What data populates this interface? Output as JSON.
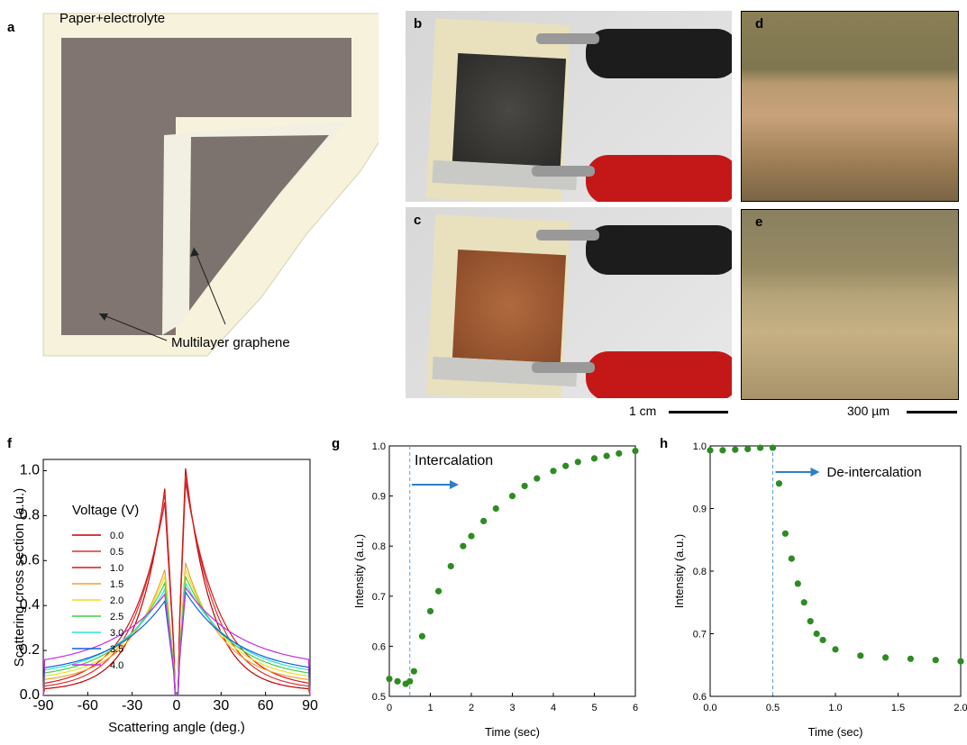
{
  "panels": {
    "a": {
      "letter": "a",
      "paper_label": "Paper+electrolyte",
      "graphene_label": "Multilayer graphene"
    },
    "b": {
      "letter": "b"
    },
    "c": {
      "letter": "c"
    },
    "d": {
      "letter": "d"
    },
    "e": {
      "letter": "e"
    },
    "scalebar_photo": "1 cm",
    "scalebar_micro": "300 µm",
    "f": {
      "letter": "f"
    },
    "g": {
      "letter": "g",
      "annotation": "Intercalation"
    },
    "h": {
      "letter": "h",
      "annotation": "De-intercalation"
    }
  },
  "chart_data": [
    {
      "id": "f",
      "type": "line",
      "xlabel": "Scattering angle (deg.)",
      "ylabel": "Scattering cross section (a.u.)",
      "xlim": [
        -90,
        90
      ],
      "ylim": [
        0,
        1.05
      ],
      "xticks": [
        -90,
        -60,
        -30,
        0,
        30,
        60,
        90
      ],
      "yticks": [
        0.0,
        0.2,
        0.4,
        0.6,
        0.8,
        1.0
      ],
      "legend_title": "Voltage (V)",
      "legend_placement": "left",
      "series": [
        {
          "name": "0.0",
          "color": "#c00000",
          "peak_left": 0.92,
          "peak_right": 1.01,
          "edge": 0.02
        },
        {
          "name": "0.5",
          "color": "#e03030",
          "peak_left": 0.9,
          "peak_right": 0.98,
          "edge": 0.025
        },
        {
          "name": "1.0",
          "color": "#d21a1a",
          "peak_left": 0.86,
          "peak_right": 0.95,
          "edge": 0.03
        },
        {
          "name": "1.5",
          "color": "#f0a030",
          "peak_left": 0.56,
          "peak_right": 0.59,
          "edge": 0.05
        },
        {
          "name": "2.0",
          "color": "#e8e020",
          "peak_left": 0.53,
          "peak_right": 0.56,
          "edge": 0.06
        },
        {
          "name": "2.5",
          "color": "#40d040",
          "peak_left": 0.5,
          "peak_right": 0.53,
          "edge": 0.07
        },
        {
          "name": "3.0",
          "color": "#30e0d0",
          "peak_left": 0.47,
          "peak_right": 0.5,
          "edge": 0.08
        },
        {
          "name": "3.5",
          "color": "#1060e0",
          "peak_left": 0.42,
          "peak_right": 0.46,
          "edge": 0.09
        },
        {
          "name": "4.0",
          "color": "#c030e0",
          "peak_left": 0.45,
          "peak_right": 0.48,
          "edge": 0.12
        }
      ]
    },
    {
      "id": "g",
      "type": "scatter",
      "xlabel": "Time (sec)",
      "ylabel": "Intensity (a.u.)",
      "xlim": [
        0,
        6
      ],
      "ylim": [
        0.5,
        1.0
      ],
      "xticks": [
        0,
        1,
        2,
        3,
        4,
        5,
        6
      ],
      "yticks": [
        0.5,
        0.6,
        0.7,
        0.8,
        0.9,
        1.0
      ],
      "marker_color": "#2e8b22",
      "event_x": 0.5,
      "x": [
        0.0,
        0.2,
        0.4,
        0.5,
        0.6,
        0.8,
        1.0,
        1.2,
        1.5,
        1.8,
        2.0,
        2.3,
        2.6,
        3.0,
        3.3,
        3.6,
        4.0,
        4.3,
        4.6,
        5.0,
        5.3,
        5.6,
        6.0
      ],
      "y": [
        0.535,
        0.53,
        0.525,
        0.53,
        0.55,
        0.62,
        0.67,
        0.71,
        0.76,
        0.8,
        0.82,
        0.85,
        0.875,
        0.9,
        0.92,
        0.935,
        0.95,
        0.96,
        0.968,
        0.975,
        0.98,
        0.985,
        0.99
      ]
    },
    {
      "id": "h",
      "type": "scatter",
      "xlabel": "Time (sec)",
      "ylabel": "Intensity (a.u.)",
      "xlim": [
        0,
        2.0
      ],
      "ylim": [
        0.6,
        1.0
      ],
      "xticks": [
        0.0,
        0.5,
        1.0,
        1.5,
        2.0
      ],
      "yticks": [
        0.6,
        0.7,
        0.8,
        0.9,
        1.0
      ],
      "marker_color": "#2e8b22",
      "event_x": 0.5,
      "x": [
        0.0,
        0.1,
        0.2,
        0.3,
        0.4,
        0.5,
        0.55,
        0.6,
        0.65,
        0.7,
        0.75,
        0.8,
        0.85,
        0.9,
        1.0,
        1.2,
        1.4,
        1.6,
        1.8,
        2.0
      ],
      "y": [
        0.993,
        0.993,
        0.994,
        0.995,
        0.997,
        0.997,
        0.94,
        0.86,
        0.82,
        0.78,
        0.75,
        0.72,
        0.7,
        0.69,
        0.675,
        0.665,
        0.662,
        0.66,
        0.658,
        0.656
      ]
    }
  ]
}
